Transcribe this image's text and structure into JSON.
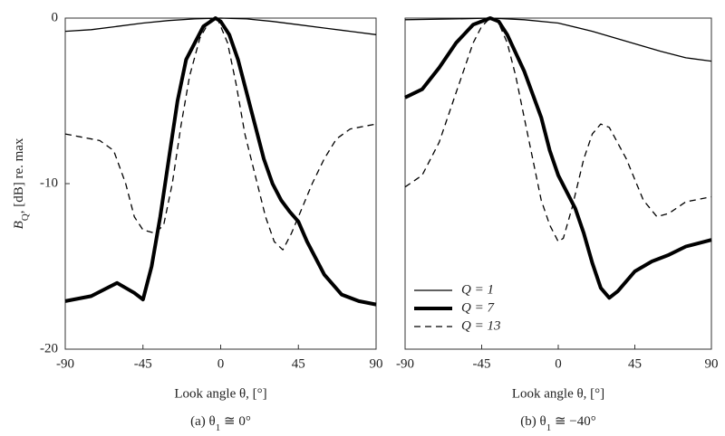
{
  "chart_data": [
    {
      "type": "line",
      "ylabel": [
        "B",
        "Q",
        ", [dB] re. max"
      ],
      "xlabel": "Look angle θ, [°]",
      "caption": [
        "(a)  θ",
        "1",
        " ≅ 0°"
      ],
      "xlim": [
        -90,
        90
      ],
      "xticks": [
        -90,
        -45,
        0,
        45,
        90
      ],
      "ylim": [
        -20,
        0
      ],
      "yticks": [
        0,
        -10,
        -20
      ],
      "series": [
        {
          "style": "solid",
          "color": "#000000",
          "x": [
            -90,
            -75,
            -60,
            -45,
            -30,
            -15,
            0,
            15,
            30,
            45,
            60,
            75,
            90
          ],
          "values": [
            -0.8,
            -0.7,
            -0.5,
            -0.3,
            -0.15,
            -0.05,
            0,
            -0.05,
            -0.2,
            -0.4,
            -0.6,
            -0.8,
            -1.0
          ]
        },
        {
          "style": "thick",
          "color": "#000000",
          "x": [
            -90,
            -75,
            -60,
            -50,
            -45,
            -40,
            -35,
            -30,
            -25,
            -20,
            -10,
            -3,
            0,
            5,
            10,
            15,
            20,
            25,
            30,
            35,
            40,
            45,
            50,
            60,
            70,
            80,
            90
          ],
          "values": [
            -17.1,
            -16.8,
            -16,
            -16.6,
            -17,
            -15,
            -12,
            -8.5,
            -5,
            -2.5,
            -0.5,
            0,
            -0.2,
            -1,
            -2.5,
            -4.5,
            -6.5,
            -8.5,
            -10,
            -11,
            -11.7,
            -12.3,
            -13.5,
            -15.5,
            -16.7,
            -17.1,
            -17.3
          ]
        },
        {
          "style": "dashed",
          "color": "#000000",
          "x": [
            -90,
            -70,
            -62,
            -55,
            -50,
            -45,
            -38,
            -33,
            -28,
            -23,
            -18,
            -12,
            -6,
            -2,
            4,
            9,
            14,
            20,
            26,
            31,
            36,
            41,
            47,
            53,
            60,
            67,
            75,
            90
          ],
          "values": [
            -7,
            -7.4,
            -8,
            -10,
            -12,
            -12.8,
            -13,
            -12.5,
            -10,
            -6.5,
            -3.5,
            -1.2,
            -0.1,
            0,
            -1.5,
            -4,
            -7,
            -9.5,
            -12,
            -13.5,
            -14,
            -13,
            -11.5,
            -10,
            -8.5,
            -7.3,
            -6.7,
            -6.4
          ]
        }
      ]
    },
    {
      "type": "line",
      "xlabel": "Look angle θ, [°]",
      "caption": [
        "(b)  θ",
        "1",
        " ≅ −40°"
      ],
      "xlim": [
        -90,
        90
      ],
      "xticks": [
        -90,
        -45,
        0,
        45,
        90
      ],
      "ylim": [
        -20,
        0
      ],
      "legend": "lower left",
      "series": [
        {
          "name": "Q = 1",
          "style": "solid",
          "color": "#000000",
          "x": [
            -90,
            -60,
            -40,
            -20,
            0,
            20,
            40,
            60,
            75,
            90
          ],
          "values": [
            -0.1,
            -0.05,
            0,
            -0.1,
            -0.3,
            -0.8,
            -1.4,
            -2.0,
            -2.4,
            -2.6
          ]
        },
        {
          "name": "Q = 7",
          "style": "thick",
          "color": "#000000",
          "x": [
            -90,
            -80,
            -70,
            -60,
            -50,
            -40,
            -35,
            -30,
            -20,
            -10,
            -5,
            0,
            5,
            10,
            15,
            20,
            25,
            30,
            35,
            45,
            55,
            65,
            75,
            90
          ],
          "values": [
            -4.8,
            -4.3,
            -3,
            -1.5,
            -0.4,
            0,
            -0.2,
            -1,
            -3.2,
            -6,
            -8,
            -9.5,
            -10.5,
            -11.5,
            -13,
            -14.8,
            -16.3,
            -16.9,
            -16.5,
            -15.3,
            -14.7,
            -14.3,
            -13.8,
            -13.4
          ]
        },
        {
          "name": "Q = 13",
          "style": "dashed",
          "color": "#000000",
          "x": [
            -90,
            -80,
            -70,
            -60,
            -55,
            -50,
            -45,
            -40,
            -35,
            -30,
            -25,
            -20,
            -15,
            -10,
            -5,
            0,
            3,
            8,
            15,
            20,
            25,
            30,
            40,
            50,
            58,
            65,
            75,
            90
          ],
          "values": [
            -10.2,
            -9.5,
            -7.5,
            -4.5,
            -3,
            -1.5,
            -0.5,
            0,
            -0.3,
            -1.5,
            -3.5,
            -6,
            -8.5,
            -11,
            -12.5,
            -13.5,
            -13.3,
            -11.5,
            -8.5,
            -7,
            -6.4,
            -6.6,
            -8.5,
            -11,
            -12,
            -11.8,
            -11.1,
            -10.8
          ]
        }
      ]
    }
  ]
}
